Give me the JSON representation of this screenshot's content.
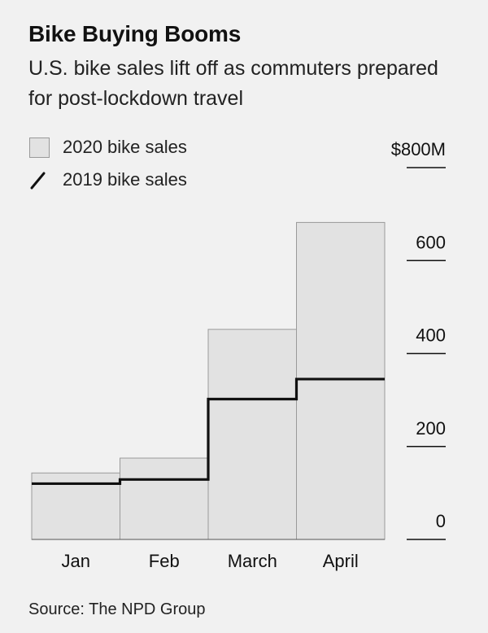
{
  "title": "Bike Buying Booms",
  "subtitle": "U.S. bike sales lift off as commuters prepared for post-lockdown travel",
  "legend": {
    "bars_label": "2020 bike sales",
    "line_label": "2019 bike sales"
  },
  "source": "Source: The NPD Group",
  "chart_data": {
    "type": "bar",
    "categories": [
      "Jan",
      "Feb",
      "March",
      "April"
    ],
    "series": [
      {
        "name": "2020 bike sales",
        "values": [
          143,
          175,
          452,
          682
        ],
        "kind": "bar"
      },
      {
        "name": "2019 bike sales",
        "values": [
          120,
          129,
          302,
          345
        ],
        "kind": "step-line"
      }
    ],
    "y_unit_label": "$800M",
    "yticks": [
      0,
      200,
      400,
      600,
      800
    ],
    "ytick_labels": [
      "0",
      "200",
      "400",
      "600",
      "$800M"
    ],
    "ylim": [
      0,
      800
    ],
    "axis_side": "right",
    "grid": false,
    "legend_position": "top-left",
    "colors": {
      "bar_fill": "#e2e2e2",
      "bar_stroke": "#9a9a9a",
      "line": "#111111",
      "background": "#f1f1f1"
    }
  }
}
